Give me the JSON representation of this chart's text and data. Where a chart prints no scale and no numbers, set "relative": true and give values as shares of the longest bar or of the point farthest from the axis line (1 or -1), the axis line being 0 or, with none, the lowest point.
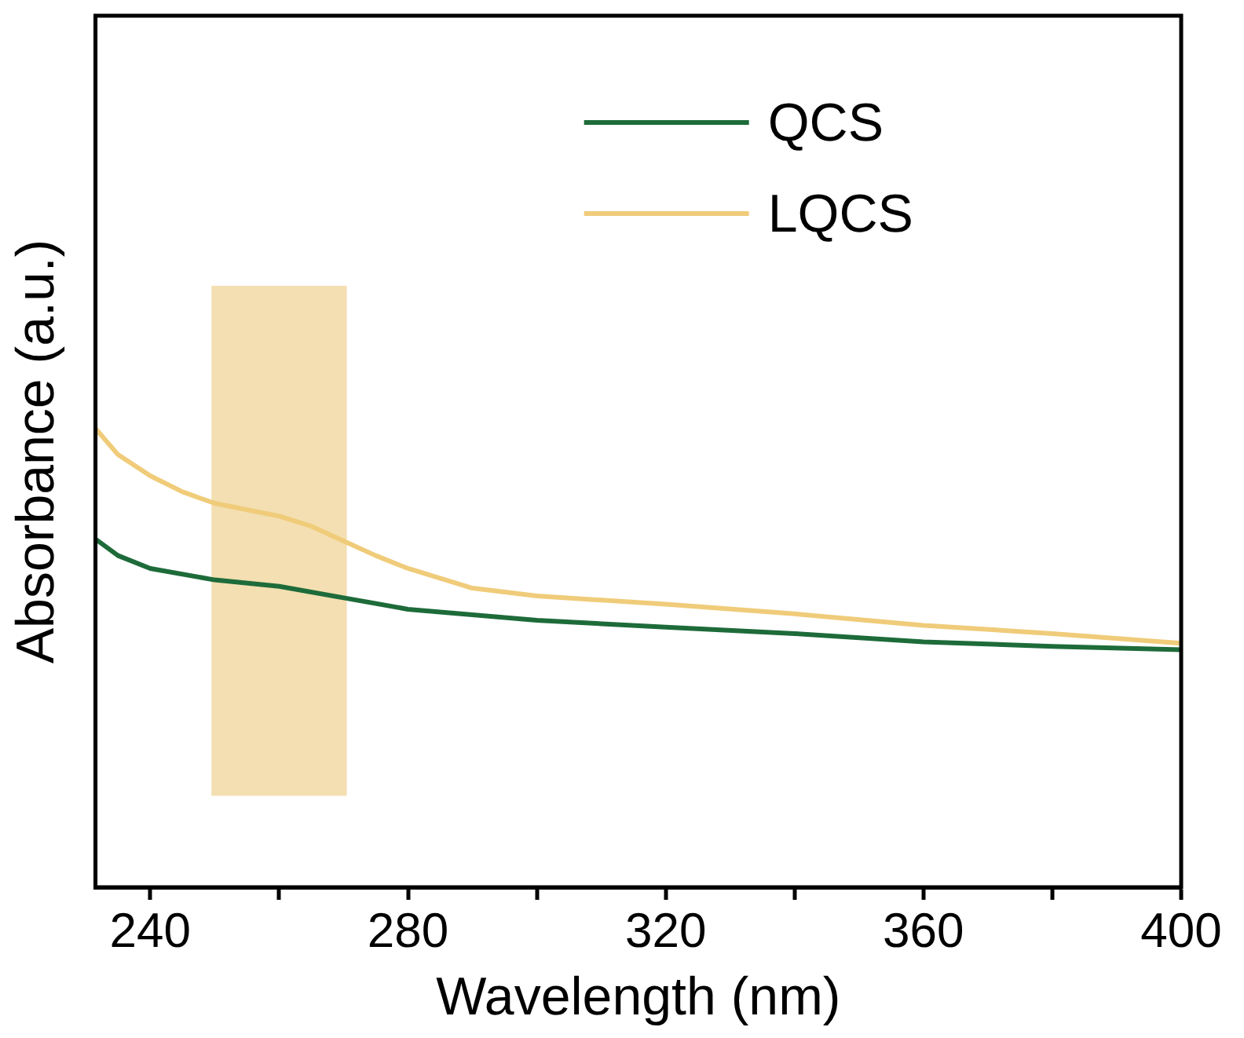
{
  "chart_data": {
    "type": "line",
    "xlabel": "Wavelength (nm)",
    "ylabel": "Absorbance (a.u.)",
    "relative": true,
    "xlim": [
      231.5,
      400
    ],
    "xticks": [
      240,
      {
        "value": 260,
        "label": null
      },
      280,
      {
        "value": 300,
        "label": null
      },
      320,
      {
        "value": 340,
        "label": null
      },
      360,
      {
        "value": 380,
        "label": null
      },
      400
    ],
    "legend": "top right",
    "grid": false,
    "marker": "none",
    "line_style": "solid",
    "bands": [
      {
        "axis": "x",
        "from": 249.5,
        "to": 270.5,
        "color": "#f2dca8"
      }
    ],
    "series": [
      {
        "name": "QCS",
        "color": "#1e6b3a",
        "x": [
          231.5,
          235,
          240,
          250,
          260,
          270,
          280,
          300,
          320,
          340,
          360,
          380,
          400
        ],
        "values": [
          0.759,
          0.723,
          0.695,
          0.67,
          0.656,
          0.631,
          0.606,
          0.582,
          0.567,
          0.553,
          0.535,
          0.525,
          0.518
        ]
      },
      {
        "name": "LQCS",
        "color": "#f0cc7a",
        "x": [
          231.5,
          235,
          240,
          245,
          250,
          255,
          260,
          265,
          270,
          275,
          280,
          290,
          300,
          320,
          340,
          360,
          380,
          400
        ],
        "values": [
          1.0,
          0.943,
          0.897,
          0.862,
          0.837,
          0.823,
          0.809,
          0.787,
          0.755,
          0.723,
          0.695,
          0.652,
          0.635,
          0.617,
          0.596,
          0.571,
          0.553,
          0.532
        ]
      }
    ]
  }
}
